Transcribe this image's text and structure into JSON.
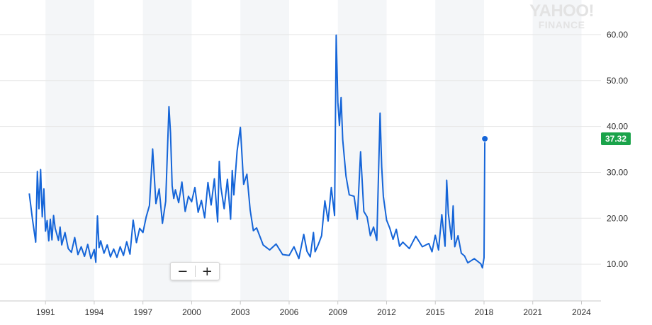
{
  "logo": {
    "line1": "YAHOO!",
    "line2": "FINANCE"
  },
  "zoom": {
    "minus": "−",
    "plus": "+"
  },
  "colors": {
    "line": "#1565d8",
    "band": "#f4f6f8",
    "grid": "#e6e6e6",
    "price_tag": "#1aa34a"
  },
  "chart_data": {
    "type": "line",
    "title": "",
    "xlabel": "",
    "ylabel": "",
    "xlim": [
      1988.2,
      2025.2
    ],
    "ylim": [
      2,
      66
    ],
    "x_ticks": [
      "1991",
      "1994",
      "1997",
      "2000",
      "2003",
      "2006",
      "2009",
      "2012",
      "2015",
      "2018",
      "2021",
      "2024"
    ],
    "y_ticks": [
      "10.00",
      "20.00",
      "30.00",
      "40.00",
      "50.00",
      "60.00"
    ],
    "y_axis_side": "right",
    "last_value_label": "37.32",
    "grid": true,
    "series": [
      {
        "x": [
          1990.0,
          1990.2,
          1990.4,
          1990.5,
          1990.6,
          1990.7,
          1990.8,
          1990.9,
          1991.0,
          1991.1,
          1991.2,
          1991.3,
          1991.4,
          1991.5,
          1991.6,
          1991.8,
          1991.9,
          1992.0,
          1992.2,
          1992.4,
          1992.6,
          1992.8,
          1993.0,
          1993.2,
          1993.4,
          1993.6,
          1993.8,
          1994.0,
          1994.1,
          1994.2,
          1994.3,
          1994.4,
          1994.6,
          1994.8,
          1995.0,
          1995.2,
          1995.4,
          1995.6,
          1995.8,
          1996.0,
          1996.2,
          1996.4,
          1996.6,
          1996.8,
          1997.0,
          1997.2,
          1997.4,
          1997.6,
          1997.8,
          1998.0,
          1998.2,
          1998.4,
          1998.6,
          1998.7,
          1998.8,
          1998.9,
          1999.0,
          1999.2,
          1999.4,
          1999.6,
          1999.8,
          2000.0,
          2000.2,
          2000.4,
          2000.6,
          2000.8,
          2001.0,
          2001.2,
          2001.4,
          2001.6,
          2001.7,
          2001.8,
          2002.0,
          2002.2,
          2002.4,
          2002.5,
          2002.6,
          2002.8,
          2003.0,
          2003.2,
          2003.4,
          2003.6,
          2003.8,
          2004.0,
          2004.4,
          2004.8,
          2005.2,
          2005.6,
          2006.0,
          2006.3,
          2006.6,
          2006.9,
          2007.1,
          2007.3,
          2007.5,
          2007.6,
          2007.8,
          2008.0,
          2008.2,
          2008.4,
          2008.6,
          2008.8,
          2008.9,
          2009.0,
          2009.1,
          2009.2,
          2009.3,
          2009.5,
          2009.7,
          2010.0,
          2010.2,
          2010.4,
          2010.6,
          2010.8,
          2011.0,
          2011.2,
          2011.4,
          2011.6,
          2011.7,
          2011.8,
          2012.0,
          2012.2,
          2012.4,
          2012.6,
          2012.8,
          2013.0,
          2013.4,
          2013.8,
          2014.2,
          2014.6,
          2014.8,
          2015.0,
          2015.2,
          2015.4,
          2015.6,
          2015.7,
          2015.8,
          2016.0,
          2016.1,
          2016.2,
          2016.4,
          2016.6,
          2016.8,
          2017.0,
          2017.4,
          2017.8,
          2017.9,
          2018.0,
          2018.05
        ],
        "y": [
          25.4,
          19.8,
          14.8,
          30.2,
          22.1,
          30.6,
          20.3,
          26.4,
          17.2,
          19.5,
          15.1,
          19.8,
          15.3,
          20.6,
          17.8,
          15.2,
          18.1,
          14.2,
          16.9,
          13.4,
          12.6,
          15.8,
          12.1,
          13.8,
          11.7,
          14.3,
          11.2,
          13.2,
          10.4,
          20.5,
          13.6,
          15.1,
          12.4,
          14.2,
          11.6,
          13.3,
          11.5,
          13.8,
          11.9,
          14.9,
          12.2,
          19.6,
          14.7,
          17.8,
          16.9,
          20.3,
          22.8,
          35.1,
          23.2,
          26.4,
          18.9,
          23.7,
          44.3,
          38.6,
          27.1,
          24.3,
          26.2,
          23.4,
          27.9,
          21.5,
          24.8,
          23.6,
          26.7,
          21.3,
          23.9,
          20.1,
          27.8,
          22.9,
          28.6,
          19.2,
          32.4,
          26.7,
          22.1,
          28.5,
          19.8,
          30.4,
          25.1,
          34.7,
          39.8,
          27.4,
          29.6,
          21.8,
          17.3,
          17.9,
          14.2,
          13.1,
          14.4,
          12.1,
          11.9,
          13.8,
          11.2,
          16.5,
          12.8,
          11.6,
          16.9,
          12.7,
          14.3,
          16.2,
          23.8,
          19.4,
          26.7,
          20.6,
          59.9,
          45.3,
          40.2,
          46.3,
          37.1,
          29.2,
          25.1,
          24.8,
          19.8,
          34.5,
          21.5,
          20.3,
          16.2,
          18.1,
          15.2,
          42.9,
          31.2,
          24.8,
          19.6,
          17.8,
          15.4,
          17.6,
          13.9,
          14.8,
          13.4,
          16.1,
          13.8,
          14.5,
          12.7,
          16.3,
          13.1,
          20.8,
          13.9,
          28.3,
          21.1,
          15.4,
          22.7,
          13.8,
          16.2,
          12.4,
          11.8,
          10.3,
          11.2,
          10.1,
          9.2,
          11.4,
          37.32
        ]
      }
    ]
  }
}
